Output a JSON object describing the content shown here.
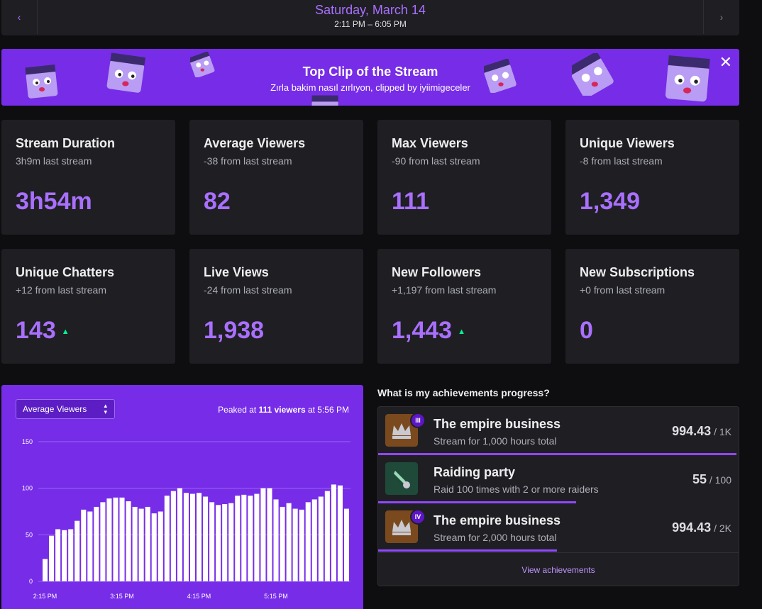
{
  "header": {
    "date": "Saturday, March 14",
    "time_range": "2:11 PM – 6:05 PM",
    "prev_icon": "chevron-left-icon",
    "next_icon": "chevron-right-icon"
  },
  "banner": {
    "title": "Top Clip of the Stream",
    "subtitle": "Zırla bakim nasıl zırlıyon, clipped by iyiimigeceler",
    "close_icon": "close-icon",
    "mascot_icon": "clapperboard-mascot-icon"
  },
  "stats": [
    {
      "title": "Stream Duration",
      "sub": "3h9m last stream",
      "value": "3h54m",
      "trend": ""
    },
    {
      "title": "Average Viewers",
      "sub": "-38 from last stream",
      "value": "82",
      "trend": ""
    },
    {
      "title": "Max Viewers",
      "sub": "-90 from last stream",
      "value": "111",
      "trend": ""
    },
    {
      "title": "Unique Viewers",
      "sub": "-8 from last stream",
      "value": "1,349",
      "trend": ""
    },
    {
      "title": "Unique Chatters",
      "sub": "+12 from last stream",
      "value": "143",
      "trend": "up"
    },
    {
      "title": "Live Views",
      "sub": "-24 from last stream",
      "value": "1,938",
      "trend": ""
    },
    {
      "title": "New Followers",
      "sub": "+1,197 from last stream",
      "value": "1,443",
      "trend": "up"
    },
    {
      "title": "New Subscriptions",
      "sub": "+0 from last stream",
      "value": "0",
      "trend": ""
    }
  ],
  "chart_panel": {
    "select_value": "Average Viewers",
    "peak_prefix": "Peaked at ",
    "peak_value": "111 viewers",
    "peak_suffix": " at 5:56 PM"
  },
  "chart_data": {
    "type": "bar",
    "title": "",
    "xlabel": "",
    "ylabel": "",
    "ylim": [
      0,
      150
    ],
    "yticks": [
      0,
      50,
      100,
      150
    ],
    "xtick_labels": [
      "2:15 PM",
      "3:15 PM",
      "4:15 PM",
      "5:15 PM"
    ],
    "xtick_indices": [
      0,
      12,
      24,
      36
    ],
    "grid": true,
    "values": [
      24,
      49,
      56,
      55,
      56,
      65,
      77,
      75,
      80,
      85,
      89,
      90,
      90,
      86,
      80,
      78,
      80,
      73,
      75,
      92,
      97,
      100,
      95,
      94,
      95,
      91,
      85,
      82,
      83,
      84,
      92,
      93,
      92,
      94,
      100,
      100,
      88,
      80,
      84,
      78,
      77,
      85,
      88,
      91,
      97,
      104,
      103,
      78
    ],
    "bar_color": "#ffffff",
    "grid_color": "#9a66f0"
  },
  "achievements": {
    "heading": "What is my achievements progress?",
    "items": [
      {
        "name": "The empire business",
        "desc": "Stream for 1,000 hours total",
        "value": "994.43",
        "total": " / 1K",
        "badge": "III",
        "icon": "crown-icon",
        "progress": 0.994
      },
      {
        "name": "Raiding party",
        "desc": "Raid 100 times with 2 or more raiders",
        "value": "55",
        "total": " / 100",
        "badge": "",
        "icon": "raid-icon",
        "progress": 0.55
      },
      {
        "name": "The empire business",
        "desc": "Stream for 2,000 hours total",
        "value": "994.43",
        "total": " / 2K",
        "badge": "IV",
        "icon": "crown-icon",
        "progress": 0.497
      }
    ],
    "footer": "View achievements"
  }
}
